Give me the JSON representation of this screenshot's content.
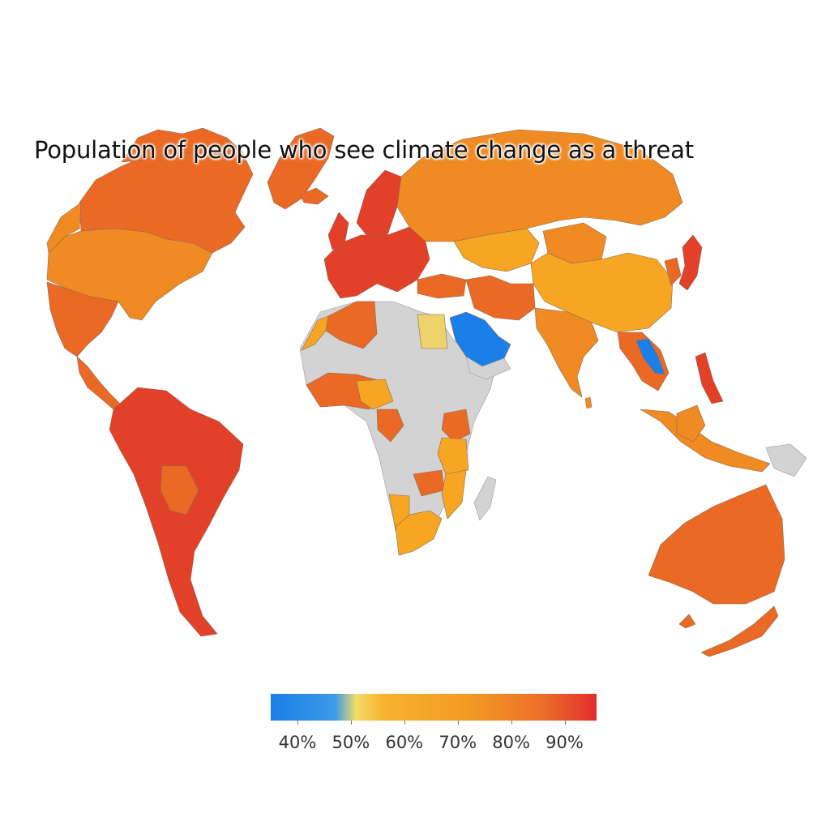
{
  "title": "Population of people who see climate change as a threat",
  "legend": {
    "labels": [
      "40%",
      "50%",
      "60%",
      "70%",
      "80%",
      "90%"
    ],
    "stops": [
      {
        "color": "#1a7fe8",
        "value": 35
      },
      {
        "color": "#3a9be6",
        "value": 47
      },
      {
        "color": "#f2dc6a",
        "value": 51
      },
      {
        "color": "#f6b430",
        "value": 56
      },
      {
        "color": "#f39a22",
        "value": 72
      },
      {
        "color": "#ec6f28",
        "value": 86
      },
      {
        "color": "#e22c2c",
        "value": 96
      }
    ],
    "range": [
      35,
      96
    ]
  },
  "colors": {
    "no_data": "#d3d3d3",
    "low": "#1a7fe8",
    "yellow": "#edd36b",
    "light_orange": "#f6a623",
    "orange": "#f08a22",
    "dark_orange": "#ea6a25",
    "red": "#e24028"
  },
  "regions": [
    {
      "id": "canada",
      "label": "canada",
      "color": "dark_orange"
    },
    {
      "id": "usa",
      "label": "united-states",
      "color": "orange"
    },
    {
      "id": "mexico",
      "label": "mexico",
      "color": "dark_orange"
    },
    {
      "id": "south-america",
      "label": "south-america",
      "color": "red"
    },
    {
      "id": "europe",
      "label": "europe",
      "color": "red"
    },
    {
      "id": "russia",
      "label": "russia",
      "color": "orange"
    },
    {
      "id": "china",
      "label": "china",
      "color": "light_orange"
    },
    {
      "id": "india",
      "label": "india",
      "color": "orange"
    },
    {
      "id": "saudi-arabia",
      "label": "saudi-arabia",
      "color": "low"
    },
    {
      "id": "egypt",
      "label": "egypt",
      "color": "yellow"
    },
    {
      "id": "australia",
      "label": "australia",
      "color": "dark_orange"
    },
    {
      "id": "laos",
      "label": "laos",
      "color": "low"
    },
    {
      "id": "japan",
      "label": "japan",
      "color": "red"
    }
  ]
}
